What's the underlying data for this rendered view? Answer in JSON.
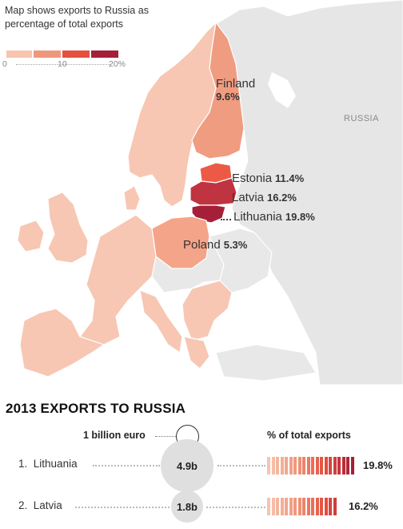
{
  "legend": {
    "title": "Map shows exports to Russia as percentage of total exports",
    "ticks": [
      "0",
      "10",
      "20%"
    ],
    "colors": [
      "#f7c4ae",
      "#ef977c",
      "#e4503f",
      "#a51f38"
    ]
  },
  "map_labels": {
    "russia": "RUSSIA",
    "countries": [
      {
        "name": "Finland",
        "value": "9.6%",
        "percent": 9.6,
        "color": "#f09c80"
      },
      {
        "name": "Estonia",
        "value": "11.4%",
        "percent": 11.4,
        "color": "#ec5a46"
      },
      {
        "name": "Latvia",
        "value": "16.2%",
        "percent": 16.2,
        "color": "#c03341"
      },
      {
        "name": "Lithuania",
        "value": "19.8%",
        "percent": 19.8,
        "color": "#a51f38"
      },
      {
        "name": "Poland",
        "value": "5.3%",
        "percent": 5.3,
        "color": "#f4a488"
      }
    ]
  },
  "colors": {
    "other_europe": "#f7c7b3",
    "non_data": "#e8e8e8",
    "russia": "#e6e6e6",
    "sea": "#ffffff",
    "borders": "#ffffff"
  },
  "exports": {
    "title": "2013 EXPORTS TO RUSSIA",
    "bubble_key": "1 billion euro",
    "percent_header": "% of total exports",
    "rows": [
      {
        "rank": "1.",
        "country": "Lithuania",
        "exports_label": "4.9b",
        "exports": 4.9,
        "percent_label": "19.8%",
        "percent": 19.8
      },
      {
        "rank": "2.",
        "country": "Latvia",
        "exports_label": "1.8b",
        "exports": 1.8,
        "percent_label": "16.2%",
        "percent": 16.2
      }
    ]
  }
}
